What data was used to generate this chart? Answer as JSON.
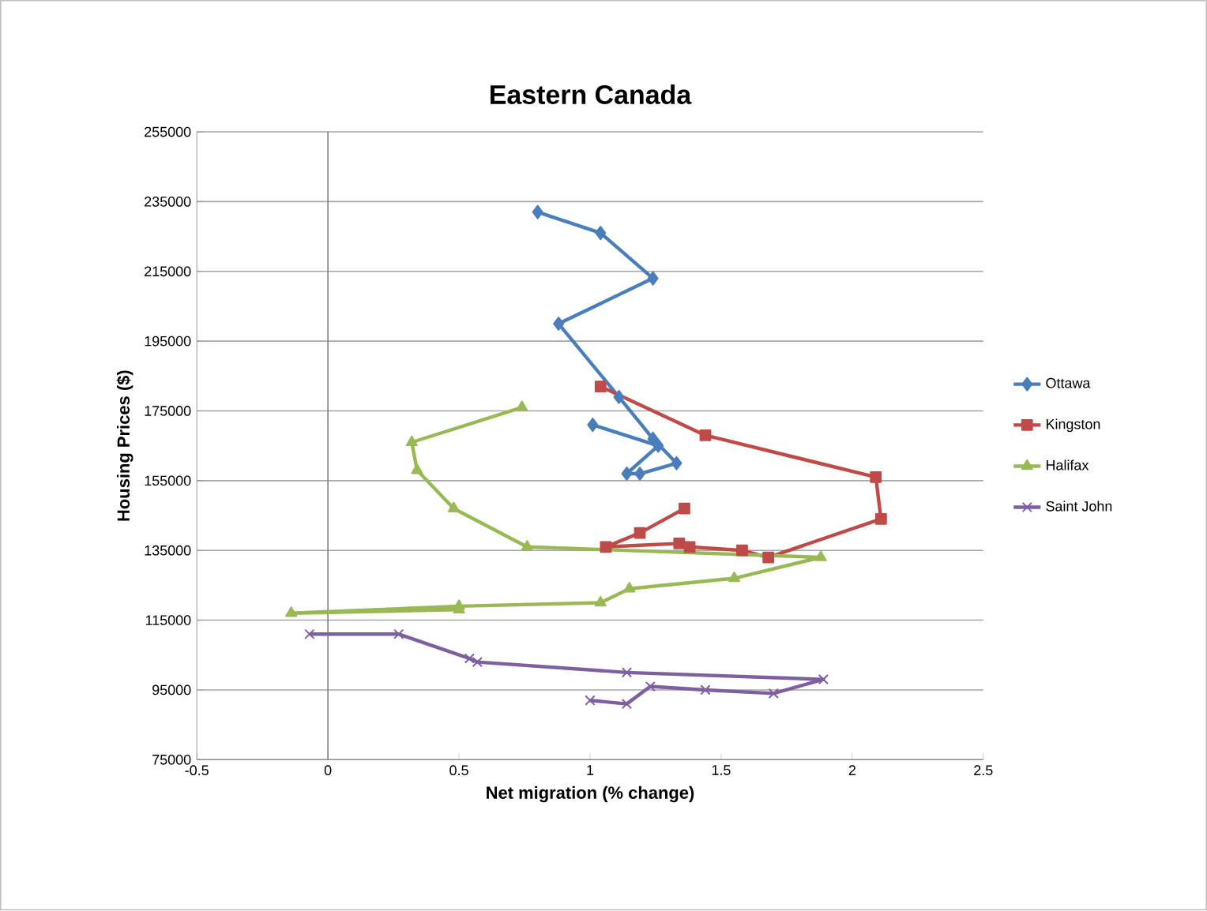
{
  "chart_data": {
    "type": "line",
    "title": "Eastern Canada",
    "xlabel": "Net migration (% change)",
    "ylabel": "Housing Prices ($)",
    "xlim": [
      -0.5,
      2.5
    ],
    "xticks": [
      -0.5,
      0,
      0.5,
      1,
      1.5,
      2,
      2.5
    ],
    "ylim": [
      75000,
      255000
    ],
    "yticks": [
      75000,
      95000,
      115000,
      135000,
      155000,
      175000,
      195000,
      215000,
      235000,
      255000
    ],
    "grid": "y",
    "legend": "right",
    "series": [
      {
        "name": "Ottawa",
        "color": "#4a7ebb",
        "marker": "diamond",
        "x": [
          1.01,
          1.26,
          1.14,
          1.19,
          1.33,
          1.24,
          1.11,
          0.88,
          1.24,
          1.04,
          0.8
        ],
        "values": [
          171000,
          165000,
          157000,
          157000,
          160000,
          167000,
          179000,
          200000,
          213000,
          226000,
          232000
        ]
      },
      {
        "name": "Kingston",
        "color": "#be4b48",
        "marker": "square",
        "x": [
          1.36,
          1.19,
          1.06,
          1.34,
          1.38,
          1.58,
          1.68,
          2.11,
          2.09,
          1.44,
          1.04
        ],
        "values": [
          147000,
          140000,
          136000,
          137000,
          136000,
          135000,
          133000,
          144000,
          156000,
          168000,
          182000
        ]
      },
      {
        "name": "Halifax",
        "color": "#98b954",
        "marker": "triangle",
        "x": [
          0.74,
          0.32,
          0.34,
          0.48,
          0.76,
          1.88,
          1.55,
          1.15,
          1.04,
          0.5,
          -0.14,
          0.5
        ],
        "values": [
          176000,
          166000,
          158000,
          147000,
          136000,
          133000,
          127000,
          124000,
          120000,
          119000,
          117000,
          118000
        ]
      },
      {
        "name": "Saint John",
        "color": "#7d60a0",
        "marker": "cross",
        "x": [
          -0.07,
          0.27,
          0.54,
          0.57,
          1.14,
          1.89,
          1.7,
          1.44,
          1.23,
          1.14,
          1.0
        ],
        "values": [
          111000,
          111000,
          104000,
          103000,
          100000,
          98000,
          94000,
          95000,
          96000,
          91000,
          92000
        ]
      }
    ]
  }
}
